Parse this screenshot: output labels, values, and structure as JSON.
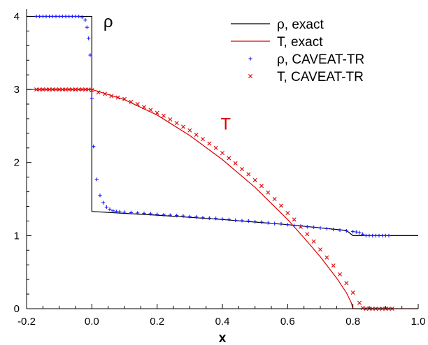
{
  "chart_data": {
    "type": "line",
    "xlabel": "x",
    "ylabel": "",
    "xlim": [
      -0.2,
      1.0
    ],
    "ylim": [
      0,
      4.1
    ],
    "x_ticks": [
      "-0.2",
      "0.0",
      "0.2",
      "0.4",
      "0.6",
      "0.8",
      "1.0"
    ],
    "y_ticks": [
      "0",
      "1",
      "2",
      "3",
      "4"
    ],
    "grid": false,
    "legend_position": "top-right",
    "annotations": [
      {
        "text": "ρ",
        "x": 0.05,
        "y": 3.85,
        "color": "#000000"
      },
      {
        "text": "T",
        "x": 0.41,
        "y": 2.45,
        "color": "#e00000"
      }
    ],
    "series": [
      {
        "name": "ρ,  exact",
        "style": "line",
        "color": "#000000",
        "points": [
          [
            -0.2,
            4.0
          ],
          [
            0.0,
            4.0
          ],
          [
            0.0,
            1.33
          ],
          [
            0.2,
            1.28
          ],
          [
            0.4,
            1.22
          ],
          [
            0.6,
            1.15
          ],
          [
            0.78,
            1.07
          ],
          [
            0.8,
            1.0
          ],
          [
            1.0,
            1.0
          ]
        ]
      },
      {
        "name": "T,  exact",
        "style": "line",
        "color": "#e00000",
        "points": [
          [
            -0.2,
            3.0
          ],
          [
            0.0,
            3.0
          ],
          [
            0.1,
            2.86
          ],
          [
            0.2,
            2.65
          ],
          [
            0.3,
            2.37
          ],
          [
            0.4,
            2.04
          ],
          [
            0.5,
            1.66
          ],
          [
            0.6,
            1.22
          ],
          [
            0.65,
            0.97
          ],
          [
            0.7,
            0.71
          ],
          [
            0.75,
            0.42
          ],
          [
            0.78,
            0.22
          ],
          [
            0.795,
            0.08
          ],
          [
            0.8,
            0.0
          ],
          [
            1.0,
            0.0
          ]
        ]
      },
      {
        "name": "ρ,  CAVEAT-TR",
        "style": "marker",
        "marker": "plus",
        "color": "#1a1aff",
        "points": [
          [
            -0.17,
            4.0
          ],
          [
            -0.16,
            4.0
          ],
          [
            -0.15,
            4.0
          ],
          [
            -0.14,
            4.0
          ],
          [
            -0.13,
            4.0
          ],
          [
            -0.12,
            4.0
          ],
          [
            -0.11,
            4.0
          ],
          [
            -0.1,
            4.0
          ],
          [
            -0.09,
            4.0
          ],
          [
            -0.08,
            4.0
          ],
          [
            -0.07,
            4.0
          ],
          [
            -0.06,
            4.0
          ],
          [
            -0.05,
            4.0
          ],
          [
            -0.04,
            4.0
          ],
          [
            -0.03,
            3.99
          ],
          [
            -0.02,
            3.95
          ],
          [
            -0.015,
            3.85
          ],
          [
            -0.01,
            3.7
          ],
          [
            -0.005,
            3.47
          ],
          [
            0.0,
            2.88
          ],
          [
            0.005,
            2.22
          ],
          [
            0.015,
            1.77
          ],
          [
            0.025,
            1.55
          ],
          [
            0.035,
            1.45
          ],
          [
            0.045,
            1.39
          ],
          [
            0.055,
            1.36
          ],
          [
            0.065,
            1.34
          ],
          [
            0.075,
            1.33
          ],
          [
            0.085,
            1.325
          ],
          [
            0.1,
            1.32
          ],
          [
            0.12,
            1.315
          ],
          [
            0.14,
            1.31
          ],
          [
            0.16,
            1.305
          ],
          [
            0.18,
            1.3
          ],
          [
            0.2,
            1.29
          ],
          [
            0.22,
            1.285
          ],
          [
            0.24,
            1.28
          ],
          [
            0.26,
            1.275
          ],
          [
            0.28,
            1.27
          ],
          [
            0.3,
            1.26
          ],
          [
            0.32,
            1.255
          ],
          [
            0.34,
            1.245
          ],
          [
            0.36,
            1.24
          ],
          [
            0.38,
            1.235
          ],
          [
            0.4,
            1.225
          ],
          [
            0.42,
            1.22
          ],
          [
            0.44,
            1.21
          ],
          [
            0.46,
            1.205
          ],
          [
            0.48,
            1.2
          ],
          [
            0.5,
            1.19
          ],
          [
            0.52,
            1.185
          ],
          [
            0.54,
            1.175
          ],
          [
            0.56,
            1.165
          ],
          [
            0.58,
            1.16
          ],
          [
            0.6,
            1.15
          ],
          [
            0.62,
            1.14
          ],
          [
            0.64,
            1.13
          ],
          [
            0.66,
            1.12
          ],
          [
            0.68,
            1.115
          ],
          [
            0.7,
            1.105
          ],
          [
            0.72,
            1.095
          ],
          [
            0.74,
            1.085
          ],
          [
            0.76,
            1.075
          ],
          [
            0.78,
            1.065
          ],
          [
            0.8,
            1.055
          ],
          [
            0.81,
            1.05
          ],
          [
            0.82,
            1.04
          ],
          [
            0.83,
            1.02
          ],
          [
            0.84,
            1.0
          ],
          [
            0.85,
            1.0
          ],
          [
            0.86,
            1.0
          ],
          [
            0.87,
            1.0
          ],
          [
            0.88,
            1.0
          ],
          [
            0.89,
            1.0
          ],
          [
            0.9,
            1.0
          ],
          [
            0.91,
            1.0
          ]
        ]
      },
      {
        "name": "T,  CAVEAT-TR",
        "style": "marker",
        "marker": "cross",
        "color": "#e00000",
        "points": [
          [
            -0.17,
            3.0
          ],
          [
            -0.16,
            3.0
          ],
          [
            -0.15,
            3.0
          ],
          [
            -0.14,
            3.0
          ],
          [
            -0.13,
            3.0
          ],
          [
            -0.12,
            3.0
          ],
          [
            -0.11,
            3.0
          ],
          [
            -0.1,
            3.0
          ],
          [
            -0.09,
            3.0
          ],
          [
            -0.08,
            3.0
          ],
          [
            -0.07,
            3.0
          ],
          [
            -0.06,
            3.0
          ],
          [
            -0.05,
            3.0
          ],
          [
            -0.04,
            3.0
          ],
          [
            -0.03,
            3.0
          ],
          [
            -0.02,
            3.0
          ],
          [
            -0.01,
            3.0
          ],
          [
            0.0,
            2.99
          ],
          [
            0.02,
            2.96
          ],
          [
            0.04,
            2.94
          ],
          [
            0.06,
            2.91
          ],
          [
            0.08,
            2.89
          ],
          [
            0.1,
            2.87
          ],
          [
            0.12,
            2.83
          ],
          [
            0.14,
            2.8
          ],
          [
            0.16,
            2.76
          ],
          [
            0.18,
            2.72
          ],
          [
            0.2,
            2.68
          ],
          [
            0.22,
            2.64
          ],
          [
            0.24,
            2.59
          ],
          [
            0.26,
            2.54
          ],
          [
            0.28,
            2.49
          ],
          [
            0.3,
            2.44
          ],
          [
            0.32,
            2.38
          ],
          [
            0.34,
            2.32
          ],
          [
            0.36,
            2.26
          ],
          [
            0.38,
            2.2
          ],
          [
            0.4,
            2.13
          ],
          [
            0.42,
            2.06
          ],
          [
            0.44,
            1.99
          ],
          [
            0.46,
            1.91
          ],
          [
            0.48,
            1.84
          ],
          [
            0.5,
            1.76
          ],
          [
            0.52,
            1.68
          ],
          [
            0.54,
            1.59
          ],
          [
            0.56,
            1.5
          ],
          [
            0.58,
            1.41
          ],
          [
            0.6,
            1.31
          ],
          [
            0.62,
            1.22
          ],
          [
            0.64,
            1.12
          ],
          [
            0.66,
            1.02
          ],
          [
            0.68,
            0.92
          ],
          [
            0.7,
            0.81
          ],
          [
            0.72,
            0.7
          ],
          [
            0.74,
            0.59
          ],
          [
            0.76,
            0.47
          ],
          [
            0.78,
            0.35
          ],
          [
            0.8,
            0.22
          ],
          [
            0.82,
            0.08
          ],
          [
            0.83,
            0.01
          ],
          [
            0.84,
            0.0
          ],
          [
            0.85,
            0.0
          ],
          [
            0.86,
            0.0
          ],
          [
            0.87,
            0.0
          ],
          [
            0.88,
            0.0
          ],
          [
            0.89,
            0.0
          ],
          [
            0.9,
            0.0
          ],
          [
            0.91,
            0.0
          ],
          [
            0.92,
            0.0
          ]
        ]
      }
    ]
  }
}
